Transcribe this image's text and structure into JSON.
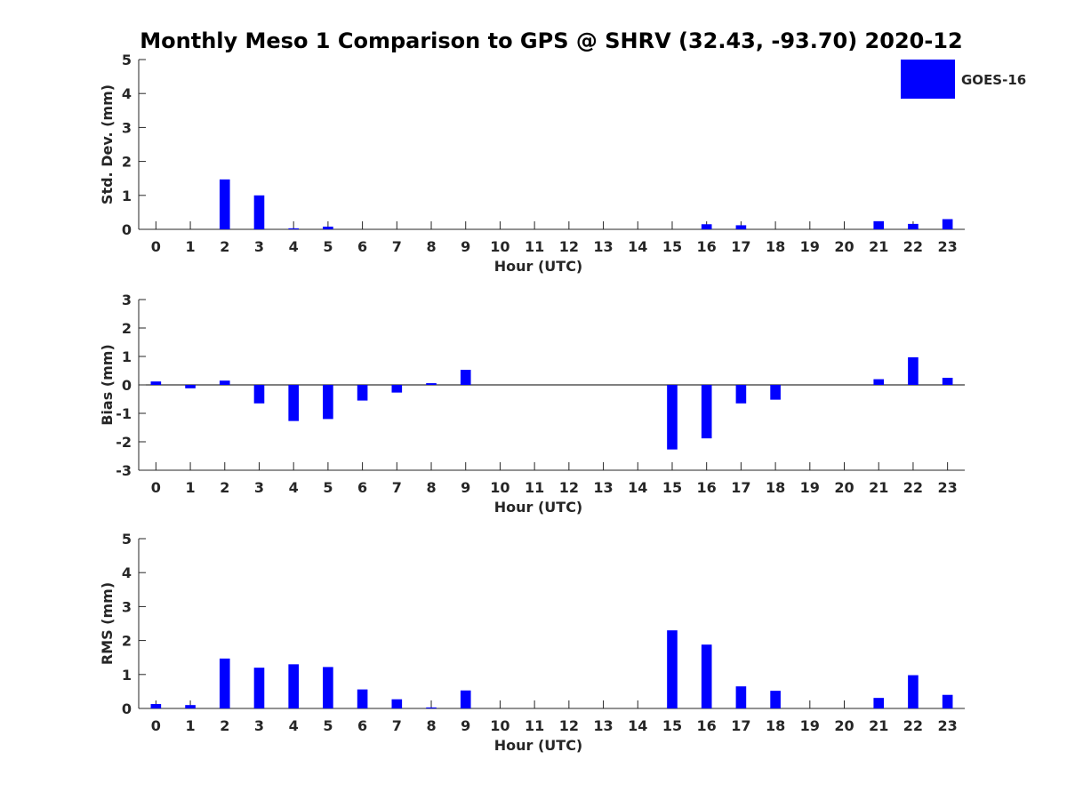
{
  "title": "Monthly Meso 1 Comparison to GPS @ SHRV (32.43, -93.70) 2020-12",
  "legend": {
    "label": "GOES-16",
    "color": "#0000ff",
    "placement": "top-right"
  },
  "colors": {
    "bar": "#0000ff",
    "axis": "#262626"
  },
  "chart_data": [
    {
      "type": "bar",
      "xlabel": "Hour (UTC)",
      "ylabel": "Std. Dev. (mm)",
      "x": [
        0,
        1,
        2,
        3,
        4,
        5,
        6,
        7,
        8,
        9,
        10,
        11,
        12,
        13,
        14,
        15,
        16,
        17,
        18,
        19,
        20,
        21,
        22,
        23
      ],
      "ylim": [
        0,
        5
      ],
      "yticks": [
        0,
        1,
        2,
        3,
        4,
        5
      ],
      "zero_line": false,
      "series": [
        {
          "name": "GOES-16",
          "values": [
            0,
            0,
            1.47,
            1.0,
            0.03,
            0.08,
            0,
            0,
            0,
            0,
            0,
            0,
            0,
            0,
            0,
            0,
            0.15,
            0.12,
            0,
            0,
            0,
            0.24,
            0.16,
            0.3
          ]
        }
      ]
    },
    {
      "type": "bar",
      "xlabel": "Hour (UTC)",
      "ylabel": "Bias (mm)",
      "x": [
        0,
        1,
        2,
        3,
        4,
        5,
        6,
        7,
        8,
        9,
        10,
        11,
        12,
        13,
        14,
        15,
        16,
        17,
        18,
        19,
        20,
        21,
        22,
        23
      ],
      "ylim": [
        -3,
        3
      ],
      "yticks": [
        -3,
        -2,
        -1,
        0,
        1,
        2,
        3
      ],
      "zero_line": true,
      "series": [
        {
          "name": "GOES-16",
          "values": [
            0.12,
            -0.12,
            0.15,
            -0.65,
            -1.27,
            -1.2,
            -0.55,
            -0.27,
            0.06,
            0.53,
            0,
            0,
            0,
            0,
            0,
            -2.27,
            -1.88,
            -0.65,
            -0.52,
            0,
            0,
            0.2,
            0.97,
            0.25
          ]
        }
      ]
    },
    {
      "type": "bar",
      "xlabel": "Hour (UTC)",
      "ylabel": "RMS (mm)",
      "x": [
        0,
        1,
        2,
        3,
        4,
        5,
        6,
        7,
        8,
        9,
        10,
        11,
        12,
        13,
        14,
        15,
        16,
        17,
        18,
        19,
        20,
        21,
        22,
        23
      ],
      "ylim": [
        0,
        5
      ],
      "yticks": [
        0,
        1,
        2,
        3,
        4,
        5
      ],
      "zero_line": false,
      "series": [
        {
          "name": "GOES-16",
          "values": [
            0.13,
            0.1,
            1.47,
            1.2,
            1.3,
            1.22,
            0.56,
            0.27,
            0.03,
            0.53,
            0,
            0,
            0,
            0,
            0,
            2.3,
            1.88,
            0.65,
            0.52,
            0,
            0,
            0.31,
            0.98,
            0.4
          ]
        }
      ]
    }
  ]
}
